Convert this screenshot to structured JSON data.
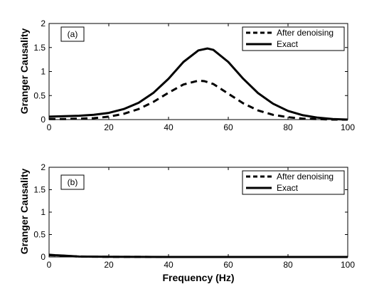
{
  "chart_data": [
    {
      "type": "line",
      "panel_label": "(a)",
      "xlabel": "",
      "ylabel": "Granger Causality",
      "xlim": [
        0,
        100
      ],
      "ylim": [
        0,
        2
      ],
      "xticks": [
        "0",
        "20",
        "40",
        "60",
        "80",
        "100"
      ],
      "yticks": [
        "0",
        "0.5",
        "1",
        "1.5",
        "2"
      ],
      "legend_position": "top-right",
      "series": [
        {
          "name": "After denoising",
          "style": "dashed",
          "x": [
            0,
            5,
            10,
            15,
            20,
            25,
            30,
            35,
            40,
            45,
            50,
            52,
            55,
            60,
            65,
            70,
            75,
            80,
            85,
            90,
            95,
            100
          ],
          "y": [
            0.01,
            0.01,
            0.02,
            0.03,
            0.06,
            0.12,
            0.22,
            0.37,
            0.56,
            0.73,
            0.81,
            0.8,
            0.74,
            0.54,
            0.34,
            0.19,
            0.1,
            0.05,
            0.02,
            0.01,
            0.0,
            0.0
          ]
        },
        {
          "name": "Exact",
          "style": "solid",
          "x": [
            0,
            5,
            10,
            15,
            20,
            25,
            30,
            35,
            40,
            45,
            50,
            53,
            55,
            60,
            65,
            70,
            75,
            80,
            85,
            90,
            95,
            100
          ],
          "y": [
            0.06,
            0.07,
            0.08,
            0.1,
            0.14,
            0.22,
            0.35,
            0.56,
            0.85,
            1.2,
            1.44,
            1.48,
            1.45,
            1.2,
            0.85,
            0.55,
            0.33,
            0.18,
            0.09,
            0.04,
            0.01,
            0.0
          ]
        }
      ]
    },
    {
      "type": "line",
      "panel_label": "(b)",
      "xlabel": "Frequency (Hz)",
      "ylabel": "Granger Causality",
      "xlim": [
        0,
        100
      ],
      "ylim": [
        0,
        2
      ],
      "xticks": [
        "0",
        "20",
        "40",
        "60",
        "80",
        "100"
      ],
      "yticks": [
        "0",
        "0.5",
        "1",
        "1.5",
        "2"
      ],
      "legend_position": "top-right",
      "series": [
        {
          "name": "After denoising",
          "style": "dashed",
          "x": [
            0,
            2,
            5,
            10,
            20,
            40,
            60,
            80,
            100
          ],
          "y": [
            0.04,
            0.035,
            0.025,
            0.01,
            0.003,
            0.0,
            0.0,
            0.0,
            0.0
          ]
        },
        {
          "name": "Exact",
          "style": "solid",
          "x": [
            0,
            2,
            5,
            10,
            20,
            40,
            60,
            80,
            100
          ],
          "y": [
            0.05,
            0.04,
            0.03,
            0.01,
            0.003,
            0.0,
            0.0,
            0.0,
            0.0
          ]
        }
      ]
    }
  ]
}
